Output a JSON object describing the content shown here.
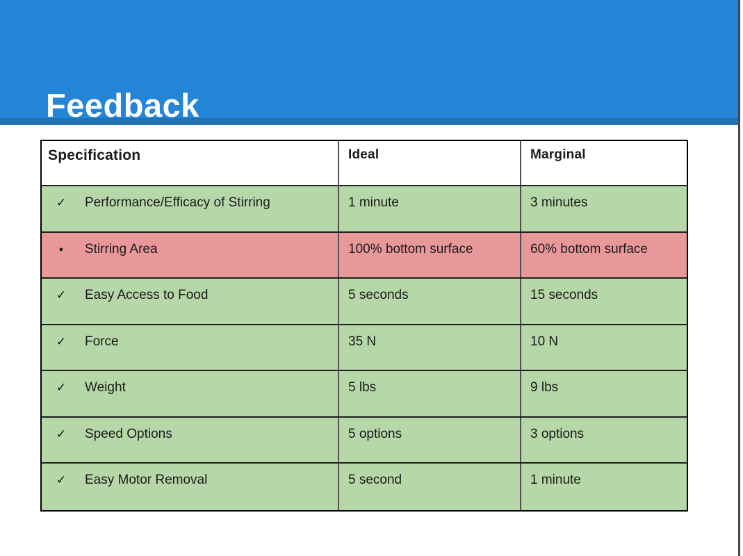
{
  "slide": {
    "title": "Feedback"
  },
  "colors": {
    "header_blue": "#2484d6",
    "accent_blue": "#2271b5",
    "pass_green": "#b6d7a8",
    "fail_red": "#e99899",
    "border_dark": "#000000",
    "text_dark": "#1b1b1b"
  },
  "icons": {
    "check": "✓",
    "bullet": "●"
  },
  "table": {
    "columns": [
      "Specification",
      "Ideal",
      "Marginal"
    ],
    "rows": [
      {
        "marker": "check",
        "tone": "green",
        "spec": "Performance/Efficacy of Stirring",
        "ideal": "1 minute",
        "marginal": "3 minutes"
      },
      {
        "marker": "bullet",
        "tone": "red",
        "spec": "Stirring Area",
        "ideal": "100% bottom surface",
        "marginal": "60% bottom surface"
      },
      {
        "marker": "check",
        "tone": "green",
        "spec": "Easy Access to Food",
        "ideal": "5 seconds",
        "marginal": "15 seconds"
      },
      {
        "marker": "check",
        "tone": "green",
        "spec": "Force",
        "ideal": "35 N",
        "marginal": "10 N"
      },
      {
        "marker": "check",
        "tone": "green",
        "spec": "Weight",
        "ideal": "5 lbs",
        "marginal": "9 lbs"
      },
      {
        "marker": "check",
        "tone": "green",
        "spec": "Speed Options",
        "ideal": "5 options",
        "marginal": "3 options"
      },
      {
        "marker": "check",
        "tone": "green",
        "spec": "Easy Motor Removal",
        "ideal": "5 second",
        "marginal": "1 minute"
      }
    ]
  }
}
